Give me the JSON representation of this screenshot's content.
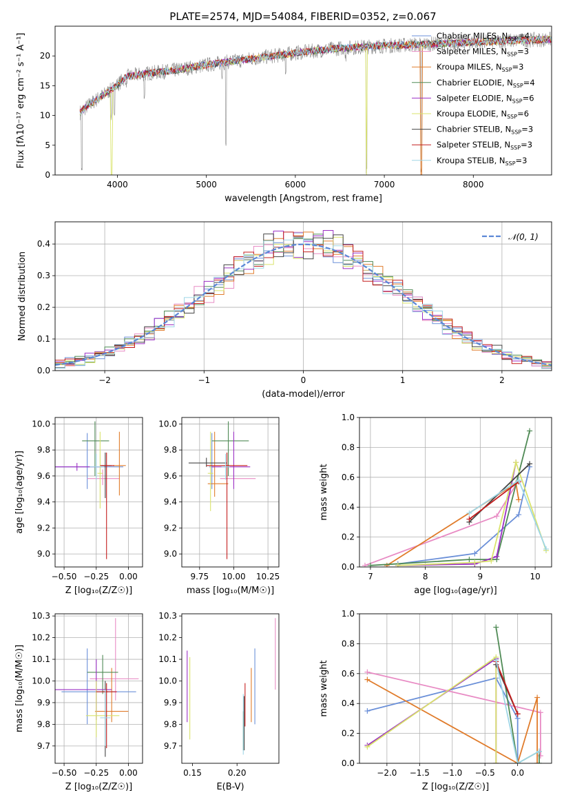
{
  "figure_title": "PLATE=2574, MJD=54084, FIBERID=0352, z=0.067",
  "colors": {
    "Chabrier MILES": "#6a8fd8",
    "Salpeter MILES": "#e88bc4",
    "Kroupa MILES": "#e07b2a",
    "Chabrier ELODIE": "#4f8a55",
    "Salpeter ELODIE": "#9b2fc4",
    "Kroupa ELODIE": "#d9e36a",
    "Chabrier STELIB": "#444444",
    "Salpeter STELIB": "#c41d1d",
    "Kroupa STELIB": "#9fd6e6",
    "data": "#888888",
    "gaussian": "#5b87d6"
  },
  "chart_data": [
    {
      "id": "spectrum",
      "type": "line",
      "title": "PLATE=2574, MJD=54084, FIBERID=0352, z=0.067",
      "xlabel": "wavelength [Angstrom, rest frame]",
      "ylabel": "Flux [fλ10⁻¹⁷ erg cm⁻² s⁻¹ A⁻¹]",
      "xlim": [
        3300,
        8880
      ],
      "ylim": [
        0,
        25
      ],
      "xticks": [
        "4000",
        "5000",
        "6000",
        "7000",
        "8000"
      ],
      "yticks": [
        "0",
        "5",
        "10",
        "15",
        "20"
      ],
      "grid": false,
      "legend_position": "right",
      "continuum": {
        "x": [
          3580,
          3620,
          3700,
          3800,
          3950,
          4100,
          4300,
          4600,
          5000,
          5500,
          6000,
          6500,
          7000,
          7500,
          8000,
          8500,
          8880
        ],
        "y": [
          10.5,
          11,
          12,
          13,
          14.5,
          16.5,
          17,
          17.5,
          18.5,
          19.5,
          20.5,
          21.3,
          21.7,
          22,
          22.3,
          22.6,
          22.8
        ]
      },
      "absorption_features": [
        {
          "x": 3600,
          "y": 0
        },
        {
          "x": 3933,
          "y": 9
        },
        {
          "x": 3968,
          "y": 10
        },
        {
          "x": 4102,
          "y": 14.5
        },
        {
          "x": 4304,
          "y": 12.5
        },
        {
          "x": 4861,
          "y": 17
        },
        {
          "x": 5175,
          "y": 16
        },
        {
          "x": 5220,
          "y": 4.3
        },
        {
          "x": 5893,
          "y": 16.5
        },
        {
          "x": 6563,
          "y": 19
        },
        {
          "x": 6800,
          "y": 0
        },
        {
          "x": 7415,
          "y": 0
        }
      ],
      "legend": [
        "Chabrier MILES, N_SSP=4",
        "Salpeter MILES, N_SSP=3",
        "Kroupa MILES, N_SSP=3",
        "Chabrier ELODIE, N_SSP=4",
        "Salpeter ELODIE, N_SSP=6",
        "Kroupa ELODIE, N_SSP=6",
        "Chabrier STELIB, N_SSP=3",
        "Salpeter STELIB, N_SSP=3",
        "Kroupa STELIB, N_SSP=3"
      ]
    },
    {
      "id": "residuals",
      "type": "histogram",
      "xlabel": "(data-model)/error",
      "ylabel": "Normed distribution",
      "xlim": [
        -2.5,
        2.5
      ],
      "ylim": [
        0,
        0.47
      ],
      "xticks": [
        "−2",
        "−1",
        "0",
        "1",
        "2"
      ],
      "yticks": [
        "0.0",
        "0.1",
        "0.2",
        "0.3",
        "0.4"
      ],
      "grid": true,
      "legend": [
        "𝒩(0, 1)"
      ],
      "legend_position": "top-right",
      "bin_width": 0.1,
      "bin_start": -2.5
    },
    {
      "id": "age_vs_Z",
      "type": "errorbar",
      "xlabel": "Z [log₁₀(Z/Z☉)]",
      "ylabel": "age  [log₁₀(age/yr)]",
      "xlim": [
        -0.57,
        0.11
      ],
      "ylim": [
        8.9,
        10.05
      ],
      "xticks": [
        "−0.50",
        "−0.25",
        "0.00"
      ],
      "yticks": [
        "9.0",
        "9.2",
        "9.4",
        "9.6",
        "9.8",
        "10.0"
      ],
      "grid": true,
      "points": [
        {
          "model": "Chabrier MILES",
          "x": -0.32,
          "y": 9.67,
          "xerr": [
            0.25,
            0.28
          ],
          "yerr": [
            0.17,
            0.26
          ]
        },
        {
          "model": "Salpeter MILES",
          "x": -0.2,
          "y": 9.58,
          "xerr": [
            0.12,
            0.13
          ],
          "yerr": [
            0.05,
            0.07
          ]
        },
        {
          "model": "Kroupa MILES",
          "x": -0.07,
          "y": 9.68,
          "xerr": [
            0.05,
            0.05
          ],
          "yerr": [
            0.23,
            0.26
          ]
        },
        {
          "model": "Chabrier ELODIE",
          "x": -0.26,
          "y": 9.87,
          "xerr": [
            0.1,
            0.11
          ],
          "yerr": [
            0.27,
            0.15
          ]
        },
        {
          "model": "Salpeter ELODIE",
          "x": -0.4,
          "y": 9.67,
          "xerr": [
            0.17,
            0.19
          ],
          "yerr": [
            0.03,
            0.03
          ]
        },
        {
          "model": "Kroupa ELODIE",
          "x": -0.22,
          "y": 9.62,
          "xerr": [
            0.02,
            0.02
          ],
          "yerr": [
            0.27,
            0.32
          ]
        },
        {
          "model": "Chabrier STELIB",
          "x": -0.18,
          "y": 9.68,
          "xerr": [
            0.03,
            0.05
          ],
          "yerr": [
            0.25,
            0.1
          ]
        },
        {
          "model": "Salpeter STELIB",
          "x": -0.17,
          "y": 9.68,
          "xerr": [
            0.05,
            0.06
          ],
          "yerr": [
            0.72,
            0.1
          ]
        },
        {
          "model": "Kroupa STELIB",
          "x": -0.25,
          "y": 9.67,
          "xerr": [
            0.05,
            0.06
          ],
          "yerr": [
            0.1,
            0.1
          ]
        }
      ]
    },
    {
      "id": "age_vs_mass",
      "type": "errorbar",
      "xlabel": "mass [log₁₀(M/M☉)]",
      "ylabel": "",
      "xlim": [
        9.62,
        10.33
      ],
      "ylim": [
        8.9,
        10.05
      ],
      "xticks": [
        "9.75",
        "10.00",
        "10.25"
      ],
      "yticks": [
        "9.0",
        "9.2",
        "9.4",
        "9.6",
        "9.8",
        "10.0"
      ],
      "grid": true,
      "points": [
        {
          "model": "Chabrier MILES",
          "x": 9.84,
          "y": 9.67,
          "xerr": [
            0.02,
            0.02
          ],
          "yerr": [
            0.17,
            0.26
          ]
        },
        {
          "model": "Salpeter MILES",
          "x": 10.0,
          "y": 9.58,
          "xerr": [
            0.1,
            0.16
          ],
          "yerr": [
            0.05,
            0.07
          ]
        },
        {
          "model": "Kroupa MILES",
          "x": 9.86,
          "y": 9.54,
          "xerr": [
            0.05,
            0.1
          ],
          "yerr": [
            0.1,
            0.4
          ]
        },
        {
          "model": "Chabrier ELODIE",
          "x": 9.96,
          "y": 9.87,
          "xerr": [
            0.12,
            0.15
          ],
          "yerr": [
            0.27,
            0.15
          ]
        },
        {
          "model": "Salpeter ELODIE",
          "x": 10.0,
          "y": 9.67,
          "xerr": [
            0.16,
            0.12
          ],
          "yerr": [
            0.17,
            0.27
          ]
        },
        {
          "model": "Kroupa ELODIE",
          "x": 9.83,
          "y": 9.62,
          "xerr": [
            0.02,
            0.02
          ],
          "yerr": [
            0.29,
            0.32
          ]
        },
        {
          "model": "Chabrier STELIB",
          "x": 9.8,
          "y": 9.7,
          "xerr": [
            0.13,
            0.15
          ],
          "yerr": [
            0.03,
            0.04
          ]
        },
        {
          "model": "Salpeter STELIB",
          "x": 9.95,
          "y": 9.68,
          "xerr": [
            0.15,
            0.15
          ],
          "yerr": [
            0.72,
            0.1
          ]
        },
        {
          "model": "Kroupa STELIB",
          "x": 9.94,
          "y": 9.67,
          "xerr": [
            0.03,
            0.03
          ],
          "yerr": [
            0.1,
            0.1
          ]
        }
      ]
    },
    {
      "id": "mass_weight_vs_age",
      "type": "line",
      "xlabel": "age  [log₁₀(age/yr)]",
      "ylabel": "mass weight",
      "xlim": [
        6.8,
        10.3
      ],
      "ylim": [
        0,
        1
      ],
      "xticks": [
        "7",
        "8",
        "9",
        "10"
      ],
      "yticks": [
        "0.0",
        "0.2",
        "0.4",
        "0.6",
        "0.8",
        "1.0"
      ],
      "grid": true,
      "series": [
        {
          "model": "Chabrier MILES",
          "x": [
            7.5,
            8.9,
            9.7,
            9.9
          ],
          "y": [
            0.02,
            0.09,
            0.35,
            0.67
          ]
        },
        {
          "model": "Salpeter MILES",
          "x": [
            6.9,
            9.3,
            9.7
          ],
          "y": [
            0.01,
            0.34,
            0.58
          ]
        },
        {
          "model": "Kroupa MILES",
          "x": [
            7.3,
            9.65,
            9.7
          ],
          "y": [
            0.01,
            0.56,
            0.45
          ]
        },
        {
          "model": "Chabrier ELODIE",
          "x": [
            7.0,
            8.8,
            9.3,
            9.9
          ],
          "y": [
            0.01,
            0.05,
            0.05,
            0.91
          ]
        },
        {
          "model": "Salpeter ELODIE",
          "x": [
            7.5,
            8.9,
            9.3,
            9.65
          ],
          "y": [
            0.01,
            0.02,
            0.07,
            0.7
          ]
        },
        {
          "model": "Kroupa ELODIE",
          "x": [
            7.5,
            8.9,
            9.2,
            9.65,
            10.2
          ],
          "y": [
            0.01,
            0.03,
            0.04,
            0.7,
            0.11
          ]
        },
        {
          "model": "Chabrier STELIB",
          "x": [
            8.8,
            9.9
          ],
          "y": [
            0.3,
            0.69
          ]
        },
        {
          "model": "Salpeter STELIB",
          "x": [
            8.8,
            9.7
          ],
          "y": [
            0.32,
            0.57
          ]
        },
        {
          "model": "Kroupa STELIB",
          "x": [
            8.8,
            9.7,
            10.2
          ],
          "y": [
            0.36,
            0.58,
            0.12
          ]
        }
      ]
    },
    {
      "id": "mass_vs_Z",
      "type": "errorbar",
      "xlabel": "Z [log₁₀(Z/Z☉)]",
      "ylabel": "mass [log₁₀(M/M☉)]",
      "xlim": [
        -0.57,
        0.11
      ],
      "ylim": [
        9.62,
        10.31
      ],
      "xticks": [
        "−0.50",
        "−0.25",
        "0.00"
      ],
      "yticks": [
        "9.7",
        "9.8",
        "9.9",
        "10.0",
        "10.1",
        "10.2",
        "10.3"
      ],
      "grid": true,
      "points": [
        {
          "model": "Chabrier MILES",
          "x": -0.32,
          "y": 9.95,
          "xerr": [
            0.2,
            0.38
          ],
          "yerr": [
            0.15,
            0.2
          ]
        },
        {
          "model": "Salpeter MILES",
          "x": -0.1,
          "y": 10.01,
          "xerr": [
            0.2,
            0.18
          ],
          "yerr": [
            0.1,
            0.28
          ]
        },
        {
          "model": "Kroupa MILES",
          "x": -0.13,
          "y": 9.86,
          "xerr": [
            0.13,
            0.13
          ],
          "yerr": [
            0.05,
            0.2
          ]
        },
        {
          "model": "Chabrier ELODIE",
          "x": -0.2,
          "y": 10.04,
          "xerr": [
            0.12,
            0.12
          ],
          "yerr": [
            0.1,
            0.08
          ]
        },
        {
          "model": "Salpeter ELODIE",
          "x": -0.25,
          "y": 9.96,
          "xerr": [
            0.32,
            0.12
          ],
          "yerr": [
            0.14,
            0.14
          ]
        },
        {
          "model": "Kroupa ELODIE",
          "x": -0.25,
          "y": 9.84,
          "xerr": [
            0.08,
            0.18
          ],
          "yerr": [
            0.1,
            0.16
          ]
        },
        {
          "model": "Chabrier STELIB",
          "x": -0.18,
          "y": 9.95,
          "xerr": [
            0.02,
            0.02
          ],
          "yerr": [
            0.3,
            0.05
          ]
        },
        {
          "model": "Salpeter STELIB",
          "x": -0.17,
          "y": 9.95,
          "xerr": [
            0.08,
            0.08
          ],
          "yerr": [
            0.26,
            0.04
          ]
        },
        {
          "model": "Kroupa STELIB",
          "x": -0.18,
          "y": 9.83,
          "xerr": [
            0.04,
            0.04
          ],
          "yerr": [
            0.13,
            0.13
          ]
        }
      ]
    },
    {
      "id": "mass_vs_ebv",
      "type": "errorbar",
      "xlabel": "E(B-V)",
      "ylabel": "",
      "xlim": [
        0.138,
        0.247
      ],
      "ylim": [
        9.62,
        10.31
      ],
      "xticks": [
        "0.15",
        "0.20"
      ],
      "yticks": [
        "9.7",
        "9.8",
        "9.9",
        "10.0",
        "10.1",
        "10.2",
        "10.3"
      ],
      "grid": false,
      "points": [
        {
          "model": "Chabrier MILES",
          "x": 0.22,
          "y": 9.98,
          "yerr": [
            0.18,
            0.17
          ]
        },
        {
          "model": "Salpeter MILES",
          "x": 0.243,
          "y": 10.12,
          "yerr": [
            0.16,
            0.17
          ]
        },
        {
          "model": "Kroupa MILES",
          "x": 0.216,
          "y": 9.93,
          "yerr": [
            0.12,
            0.13
          ]
        },
        {
          "model": "Chabrier ELODIE",
          "x": 0.207,
          "y": 9.77,
          "yerr": [
            0.09,
            0.09
          ]
        },
        {
          "model": "Salpeter ELODIE",
          "x": 0.144,
          "y": 9.97,
          "yerr": [
            0.16,
            0.17
          ]
        },
        {
          "model": "Kroupa ELODIE",
          "x": 0.147,
          "y": 9.92,
          "yerr": [
            0.19,
            0.19
          ]
        },
        {
          "model": "Chabrier STELIB",
          "x": 0.208,
          "y": 9.8,
          "yerr": [
            0.12,
            0.13
          ]
        },
        {
          "model": "Salpeter STELIB",
          "x": 0.209,
          "y": 9.89,
          "yerr": [
            0.1,
            0.1
          ]
        },
        {
          "model": "Kroupa STELIB",
          "x": 0.207,
          "y": 9.8,
          "yerr": [
            0.14,
            0.14
          ]
        }
      ]
    },
    {
      "id": "mass_weight_vs_Z",
      "type": "line",
      "xlabel": "Z [log₁₀(Z/Z☉)]",
      "ylabel": "mass weight",
      "xlim": [
        -2.42,
        0.52
      ],
      "ylim": [
        0,
        1
      ],
      "xticks": [
        "−2.0",
        "−1.5",
        "−1.0",
        "−0.5",
        "0.0"
      ],
      "yticks": [
        "0.0",
        "0.2",
        "0.4",
        "0.6",
        "0.8",
        "1.0"
      ],
      "grid": true,
      "series": [
        {
          "model": "Chabrier MILES",
          "x": [
            -2.3,
            -0.33,
            0.0,
            0.0
          ],
          "y": [
            0.35,
            0.57,
            0.3,
            0.0
          ]
        },
        {
          "model": "Salpeter MILES",
          "x": [
            -2.3,
            0.35,
            0.35
          ],
          "y": [
            0.61,
            0.34,
            0.05
          ]
        },
        {
          "model": "Kroupa MILES",
          "x": [
            -2.3,
            0.0,
            0.3,
            0.3
          ],
          "y": [
            0.56,
            0.0,
            0.44,
            0.0
          ]
        },
        {
          "model": "Chabrier ELODIE",
          "x": [
            -0.33,
            0.0,
            0.33,
            0.33
          ],
          "y": [
            0.91,
            0.0,
            0.08,
            0.0
          ]
        },
        {
          "model": "Salpeter ELODIE",
          "x": [
            -2.3,
            -0.33,
            -0.33
          ],
          "y": [
            0.12,
            0.7,
            0.0
          ]
        },
        {
          "model": "Kroupa ELODIE",
          "x": [
            -2.3,
            -0.33,
            -0.33
          ],
          "y": [
            0.11,
            0.71,
            0.0
          ]
        },
        {
          "model": "Chabrier STELIB",
          "x": [
            -0.33,
            0.0
          ],
          "y": [
            0.66,
            0.33
          ]
        },
        {
          "model": "Salpeter STELIB",
          "x": [
            -0.33,
            0.0
          ],
          "y": [
            0.68,
            0.33
          ]
        },
        {
          "model": "Kroupa STELIB",
          "x": [
            -0.33,
            0.0,
            0.33
          ],
          "y": [
            0.69,
            0.0,
            0.08
          ]
        }
      ]
    }
  ]
}
